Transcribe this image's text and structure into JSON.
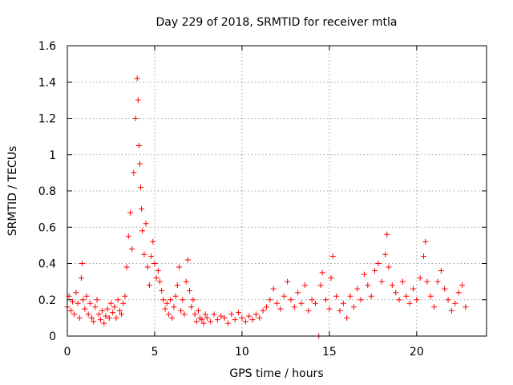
{
  "chart_data": {
    "type": "scatter",
    "title": "Day 229 of 2018, SRMTID for receiver mtla",
    "xlabel": "GPS time / hours",
    "ylabel": "SRMTID / TECUs",
    "xlim": [
      0,
      24
    ],
    "ylim": [
      0,
      1.6
    ],
    "x_ticks": [
      0,
      5,
      10,
      15,
      20
    ],
    "x_tick_labels": [
      "0",
      "5",
      "10",
      "15",
      "20"
    ],
    "y_ticks": [
      0,
      0.2,
      0.4,
      0.6,
      0.8,
      1.0,
      1.2,
      1.4,
      1.6
    ],
    "y_tick_labels": [
      "0",
      "0.2",
      "0.4",
      "0.6",
      "0.8",
      "1",
      "1.2",
      "1.4",
      "1.6"
    ],
    "grid": true,
    "marker": "+",
    "color": "#ff0000",
    "series": [
      {
        "name": "SRMTID",
        "x": [
          0.0,
          0.1,
          0.2,
          0.3,
          0.4,
          0.5,
          0.6,
          0.7,
          0.8,
          0.85,
          0.9,
          1.0,
          1.1,
          1.2,
          1.3,
          1.4,
          1.5,
          1.6,
          1.7,
          1.8,
          1.9,
          2.0,
          2.1,
          2.2,
          2.3,
          2.4,
          2.5,
          2.6,
          2.7,
          2.8,
          2.9,
          3.0,
          3.1,
          3.2,
          3.3,
          3.4,
          3.5,
          3.6,
          3.7,
          3.8,
          3.9,
          4.0,
          4.05,
          4.1,
          4.15,
          4.2,
          4.25,
          4.3,
          4.4,
          4.5,
          4.6,
          4.7,
          4.8,
          4.9,
          5.0,
          5.1,
          5.2,
          5.3,
          5.4,
          5.5,
          5.6,
          5.7,
          5.8,
          5.9,
          6.0,
          6.1,
          6.2,
          6.3,
          6.4,
          6.5,
          6.6,
          6.7,
          6.8,
          6.9,
          7.0,
          7.1,
          7.2,
          7.3,
          7.4,
          7.5,
          7.6,
          7.7,
          7.8,
          7.9,
          8.0,
          8.2,
          8.4,
          8.6,
          8.8,
          9.0,
          9.2,
          9.4,
          9.6,
          9.8,
          10.0,
          10.2,
          10.4,
          10.6,
          10.8,
          11.0,
          11.2,
          11.4,
          11.6,
          11.8,
          12.0,
          12.2,
          12.4,
          12.6,
          12.8,
          13.0,
          13.2,
          13.4,
          13.6,
          13.8,
          14.0,
          14.2,
          14.4,
          14.5,
          14.6,
          14.8,
          15.0,
          15.1,
          15.2,
          15.4,
          15.6,
          15.8,
          16.0,
          16.2,
          16.4,
          16.6,
          16.8,
          17.0,
          17.2,
          17.4,
          17.6,
          17.8,
          18.0,
          18.2,
          18.3,
          18.4,
          18.6,
          18.8,
          19.0,
          19.2,
          19.4,
          19.6,
          19.8,
          20.0,
          20.2,
          20.4,
          20.5,
          20.6,
          20.8,
          21.0,
          21.2,
          21.4,
          21.6,
          21.8,
          22.0,
          22.2,
          22.4,
          22.6,
          22.8
        ],
        "y": [
          0.16,
          0.22,
          0.14,
          0.19,
          0.12,
          0.24,
          0.18,
          0.1,
          0.32,
          0.4,
          0.2,
          0.15,
          0.22,
          0.12,
          0.18,
          0.1,
          0.08,
          0.16,
          0.2,
          0.12,
          0.09,
          0.14,
          0.07,
          0.11,
          0.15,
          0.1,
          0.18,
          0.13,
          0.16,
          0.1,
          0.2,
          0.14,
          0.12,
          0.18,
          0.22,
          0.38,
          0.55,
          0.68,
          0.48,
          0.9,
          1.2,
          1.42,
          1.3,
          1.05,
          0.95,
          0.82,
          0.7,
          0.58,
          0.45,
          0.62,
          0.38,
          0.28,
          0.44,
          0.52,
          0.4,
          0.32,
          0.36,
          0.3,
          0.25,
          0.2,
          0.15,
          0.18,
          0.12,
          0.2,
          0.1,
          0.16,
          0.22,
          0.28,
          0.38,
          0.14,
          0.2,
          0.12,
          0.3,
          0.42,
          0.25,
          0.16,
          0.2,
          0.12,
          0.08,
          0.14,
          0.1,
          0.09,
          0.07,
          0.12,
          0.1,
          0.08,
          0.12,
          0.09,
          0.11,
          0.1,
          0.07,
          0.12,
          0.09,
          0.13,
          0.1,
          0.08,
          0.11,
          0.09,
          0.12,
          0.1,
          0.14,
          0.16,
          0.2,
          0.26,
          0.18,
          0.15,
          0.22,
          0.3,
          0.2,
          0.16,
          0.24,
          0.18,
          0.28,
          0.14,
          0.2,
          0.18,
          0.0,
          0.28,
          0.35,
          0.2,
          0.15,
          0.32,
          0.44,
          0.22,
          0.14,
          0.18,
          0.1,
          0.22,
          0.16,
          0.26,
          0.2,
          0.34,
          0.28,
          0.22,
          0.36,
          0.4,
          0.3,
          0.45,
          0.56,
          0.38,
          0.28,
          0.24,
          0.2,
          0.3,
          0.22,
          0.18,
          0.26,
          0.2,
          0.32,
          0.44,
          0.52,
          0.3,
          0.22,
          0.16,
          0.3,
          0.36,
          0.26,
          0.2,
          0.14,
          0.18,
          0.24,
          0.28,
          0.16
        ]
      }
    ]
  }
}
